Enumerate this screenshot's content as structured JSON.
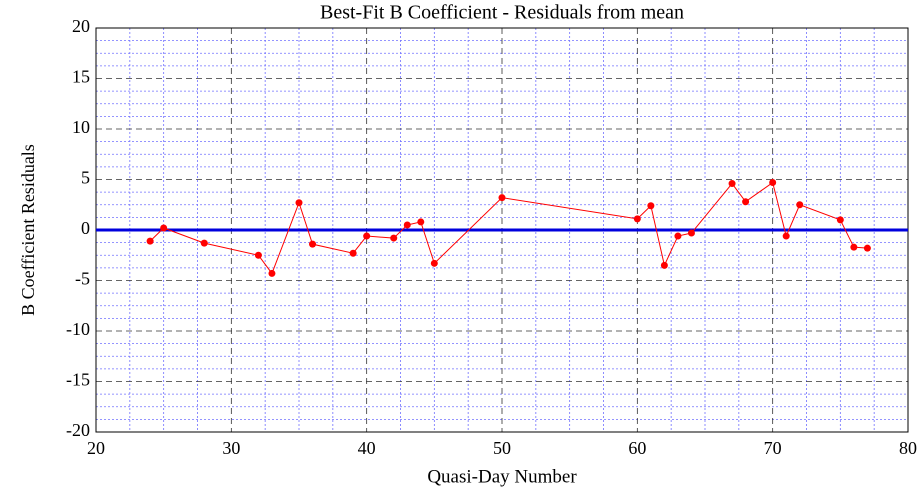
{
  "chart_data": {
    "type": "line",
    "title": "Best-Fit B Coefficient - Residuals from mean",
    "x_label": "Quasi-Day Number",
    "y_label": "B Coefficient Residuals",
    "x": [
      24,
      25,
      28,
      32,
      33,
      35,
      36,
      39,
      40,
      42,
      43,
      44,
      45,
      50,
      60,
      61,
      62,
      63,
      64,
      67,
      68,
      70,
      71,
      72,
      75,
      76,
      77
    ],
    "series": [
      {
        "color": "#ff0000",
        "values": [
          -1.1,
          0.2,
          -1.3,
          -2.5,
          -4.3,
          2.7,
          -1.4,
          -2.3,
          -0.6,
          -0.8,
          0.5,
          0.8,
          -3.3,
          3.2,
          1.1,
          2.4,
          -3.5,
          -0.6,
          -0.3,
          4.6,
          2.8,
          4.7,
          -0.6,
          2.5,
          1.0,
          -1.7,
          -1.8
        ]
      }
    ],
    "reference_line": {
      "value": 0,
      "color": "#0000dd"
    },
    "xlim": [
      20,
      80
    ],
    "xticks": [
      20,
      30,
      40,
      50,
      60,
      70,
      80
    ],
    "ylim": [
      -20,
      20
    ],
    "yticks": [
      -20,
      -15,
      -10,
      -5,
      0,
      5,
      10,
      15,
      20
    ],
    "grid": true
  }
}
